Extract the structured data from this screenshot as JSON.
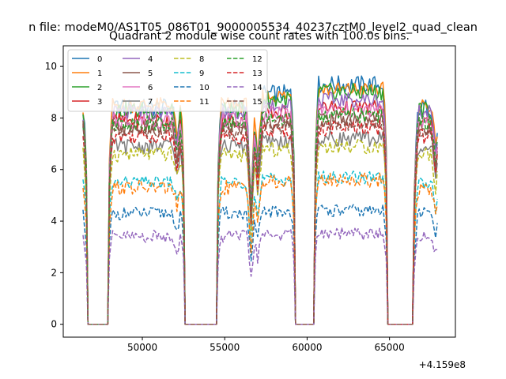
{
  "suptitle": "n file: modeM0/AS1T05_086T01_9000005534_40237cztM0_level2_quad_clean",
  "chart_data": {
    "type": "line",
    "title": "Quadrant 2 module wise count rates with 100.0s bins.",
    "xlabel": "",
    "ylabel": "",
    "x_offset_label": "+4.159e8",
    "xlim": [
      45200,
      69000
    ],
    "ylim": [
      -0.5,
      10.8
    ],
    "xticks": [
      50000,
      55000,
      60000,
      65000
    ],
    "xtick_labels": [
      "50000",
      "55000",
      "60000",
      "65000"
    ],
    "yticks": [
      0,
      2,
      4,
      6,
      8,
      10
    ],
    "ytick_labels": [
      "0",
      "2",
      "4",
      "6",
      "8",
      "10"
    ],
    "grid": false,
    "legend_position": "top-left",
    "legend_columns": 4,
    "x_range": [
      46400,
      67900
    ],
    "bin_width": 100,
    "gaps": [
      [
        46700,
        47900
      ],
      [
        52600,
        54500
      ],
      [
        59300,
        60400
      ],
      [
        64900,
        66400
      ]
    ],
    "dips": [
      [
        52100,
        0.85
      ],
      [
        56600,
        0.55
      ],
      [
        57000,
        0.75
      ],
      [
        66500,
        0.8
      ],
      [
        67800,
        0.8
      ]
    ],
    "series": [
      {
        "name": "0",
        "color": "#1f77b4",
        "style": "solid",
        "level": 8.4,
        "amp": 0.35,
        "trend": 0.9
      },
      {
        "name": "1",
        "color": "#ff7f0e",
        "style": "solid",
        "level": 8.5,
        "amp": 0.3,
        "trend": 0.6
      },
      {
        "name": "2",
        "color": "#2ca02c",
        "style": "solid",
        "level": 8.3,
        "amp": 0.35,
        "trend": 0.7
      },
      {
        "name": "3",
        "color": "#d62728",
        "style": "solid",
        "level": 7.9,
        "amp": 0.3,
        "trend": 0.5
      },
      {
        "name": "4",
        "color": "#9467bd",
        "style": "solid",
        "level": 8.2,
        "amp": 0.3,
        "trend": 0.5
      },
      {
        "name": "5",
        "color": "#8c564b",
        "style": "solid",
        "level": 7.6,
        "amp": 0.3,
        "trend": 0.4
      },
      {
        "name": "6",
        "color": "#e377c2",
        "style": "solid",
        "level": 7.9,
        "amp": 0.3,
        "trend": 0.4
      },
      {
        "name": "7",
        "color": "#7f7f7f",
        "style": "solid",
        "level": 6.9,
        "amp": 0.3,
        "trend": 0.3
      },
      {
        "name": "8",
        "color": "#bcbd22",
        "style": "dashed",
        "level": 6.6,
        "amp": 0.3,
        "trend": 0.3
      },
      {
        "name": "9",
        "color": "#17becf",
        "style": "dashed",
        "level": 5.5,
        "amp": 0.25,
        "trend": 0.2
      },
      {
        "name": "10",
        "color": "#1f77b4",
        "style": "dashed",
        "level": 4.3,
        "amp": 0.25,
        "trend": 0.1
      },
      {
        "name": "11",
        "color": "#ff7f0e",
        "style": "dashed",
        "level": 5.3,
        "amp": 0.3,
        "trend": 0.3
      },
      {
        "name": "12",
        "color": "#2ca02c",
        "style": "dashed",
        "level": 7.8,
        "amp": 0.3,
        "trend": 0.3
      },
      {
        "name": "13",
        "color": "#d62728",
        "style": "dashed",
        "level": 7.3,
        "amp": 0.3,
        "trend": 0.3
      },
      {
        "name": "14",
        "color": "#9467bd",
        "style": "dashed",
        "level": 3.4,
        "amp": 0.25,
        "trend": 0.1
      },
      {
        "name": "15",
        "color": "#8c564b",
        "style": "dashed",
        "level": 7.5,
        "amp": 0.3,
        "trend": 0.3
      }
    ]
  }
}
